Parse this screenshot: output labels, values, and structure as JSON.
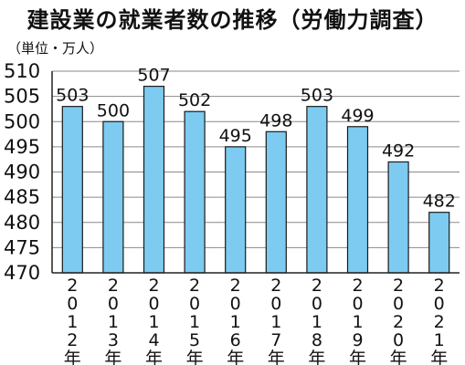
{
  "chart_data": {
    "type": "bar",
    "title": "建設業の就業者数の推移（労働力調査）",
    "unit_label": "（単位・万人）",
    "categories": [
      "2012年",
      "2013年",
      "2014年",
      "2015年",
      "2016年",
      "2017年",
      "2018年",
      "2019年",
      "2020年",
      "2021年"
    ],
    "values": [
      503,
      500,
      507,
      502,
      495,
      498,
      503,
      499,
      492,
      482
    ],
    "ylim": [
      470,
      510
    ],
    "yticks": [
      470,
      475,
      480,
      485,
      490,
      495,
      500,
      505,
      510
    ],
    "grid": true,
    "bar_color": "#7dcbf0",
    "bar_stroke": "#1a1a1a"
  }
}
